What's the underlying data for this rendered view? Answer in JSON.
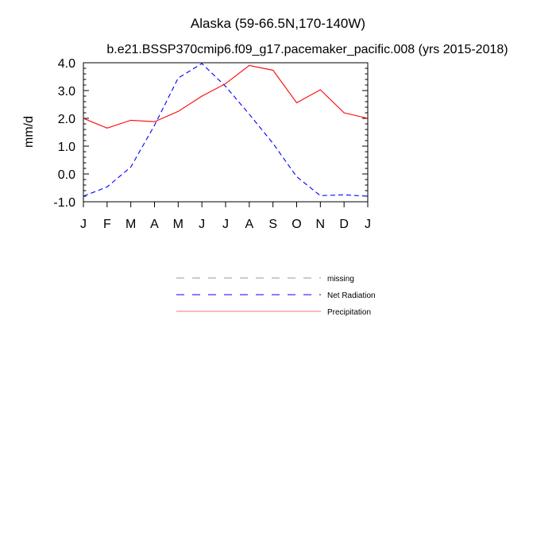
{
  "chart_data": {
    "type": "line",
    "title": "Alaska (59-66.5N,170-140W)",
    "subtitle": "b.e21.BSSP370cmip6.f09_g17.pacemaker_pacific.008 (yrs 2015-2018)",
    "xlabel": "",
    "ylabel": "mm/d",
    "ylim": [
      -1.0,
      4.0
    ],
    "yticks": [
      "4.0",
      "3.0",
      "2.0",
      "1.0",
      "0.0",
      "-1.0"
    ],
    "categories": [
      "J",
      "F",
      "M",
      "A",
      "M",
      "J",
      "J",
      "A",
      "S",
      "O",
      "N",
      "D",
      "J"
    ],
    "grid": false,
    "legend_position": "bottom-center",
    "series": [
      {
        "name": "Net Radiation",
        "style": "dashed",
        "color": "#0000ff",
        "values": [
          -0.8,
          -0.47,
          0.25,
          1.75,
          3.45,
          3.97,
          3.15,
          2.15,
          1.1,
          -0.1,
          -0.78,
          -0.75,
          -0.8
        ]
      },
      {
        "name": "Precipitation",
        "style": "solid",
        "color": "#ff0000",
        "values": [
          2.0,
          1.65,
          1.93,
          1.88,
          2.25,
          2.8,
          3.25,
          3.9,
          3.73,
          2.56,
          3.03,
          2.2,
          2.0
        ]
      }
    ],
    "legend": [
      {
        "label": "missing",
        "style": "dashed",
        "color": "#999999"
      },
      {
        "label": "Net Radiation",
        "style": "dashed",
        "color": "#0000ff"
      },
      {
        "label": "Precipitation",
        "style": "solid",
        "color": "#ff0000"
      }
    ]
  }
}
